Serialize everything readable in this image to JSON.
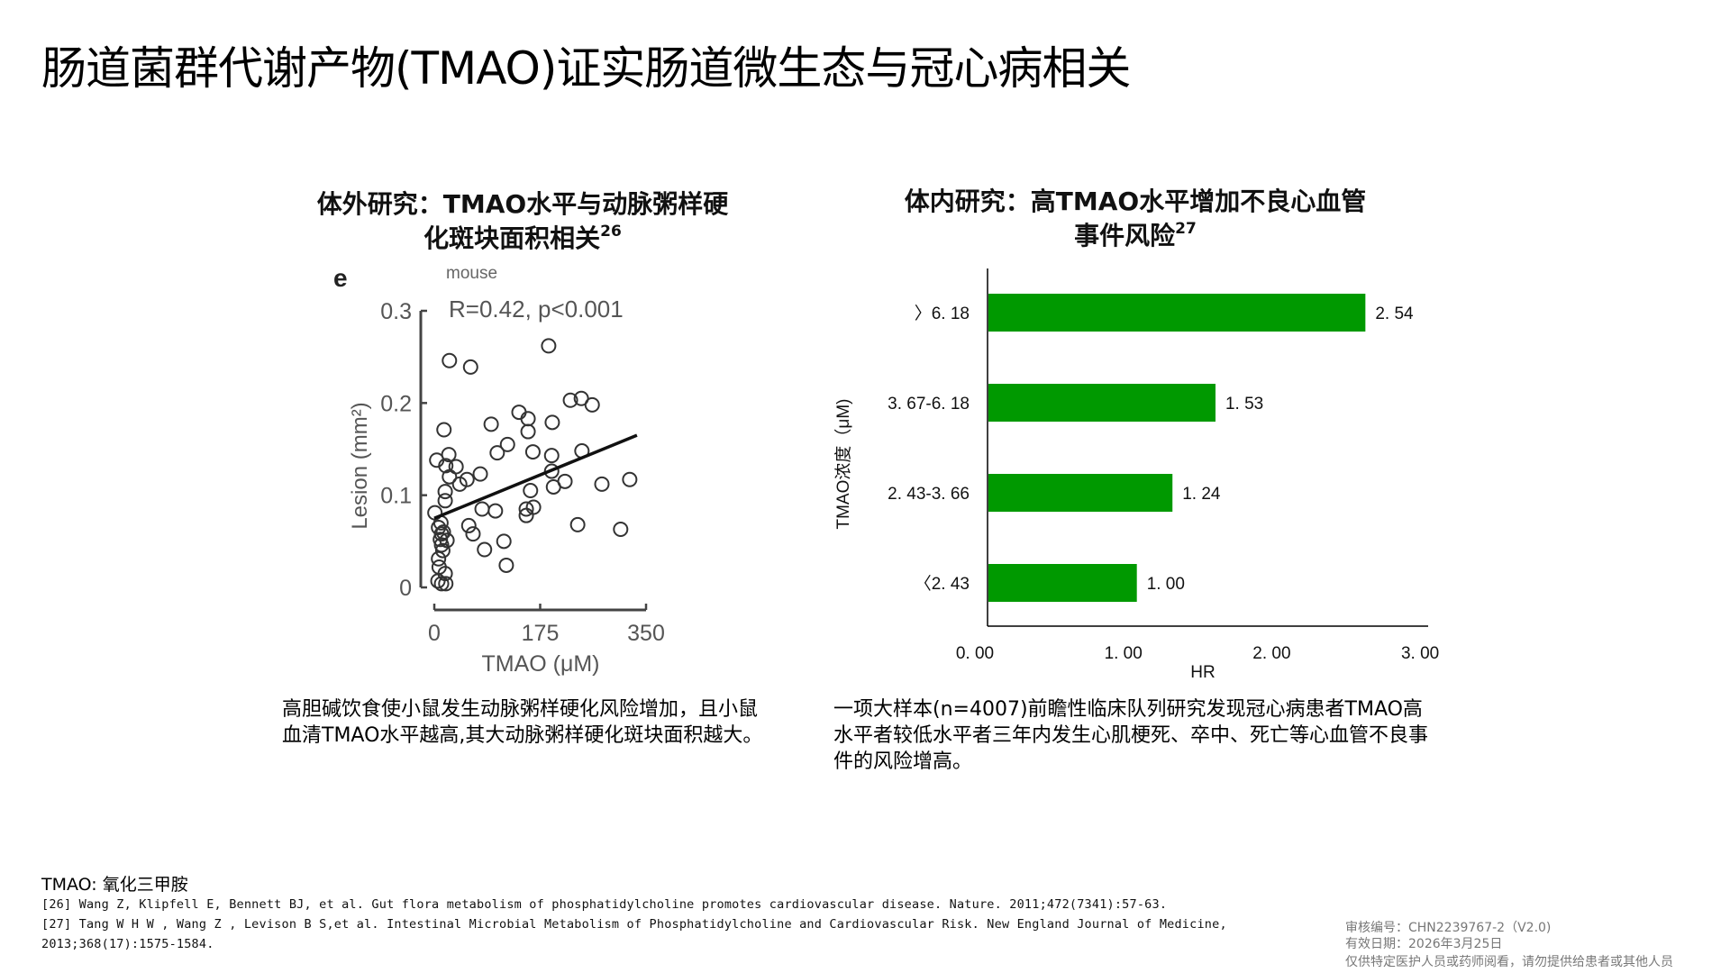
{
  "page": {
    "title": "肠道菌群代谢产物(TMAO)证实肠道微生态与冠心病相关"
  },
  "left_panel": {
    "title_line1": "体外研究：TMAO水平与动脉粥样硬",
    "title_line2": "化斑块面积相关",
    "title_ref": "26",
    "description": "高胆碱饮食使小鼠发生动脉粥样硬化风险增加，且小鼠血清TMAO水平越高,其大动脉粥样硬化斑块面积越大。"
  },
  "right_panel": {
    "title_line1": "体内研究：高TMAO水平增加不良心血管",
    "title_line2": "事件风险",
    "title_ref": "27",
    "description": "一项大样本(n=4007)前瞻性临床队列研究发现冠心病患者TMAO高水平者较低水平者三年内发生心肌梗死、卒中、死亡等心血管不良事件的风险增高。"
  },
  "chart_data": [
    {
      "type": "scatter",
      "panel_label": "e",
      "subtitle": "mouse",
      "annotation": "R=0.42, p<0.001",
      "xlabel": "TMAO (μM)",
      "ylabel": "Lesion (mm²)",
      "xlim": [
        0,
        350
      ],
      "ylim": [
        0,
        0.3
      ],
      "xticks": [
        "0",
        "175",
        "350"
      ],
      "yticks": [
        "0",
        "0.1",
        "0.2",
        "0.3"
      ],
      "grid": false,
      "regression_line": {
        "x": [
          0,
          335
        ],
        "y": [
          0.075,
          0.165
        ]
      },
      "points": [
        [
          25,
          0.246
        ],
        [
          60,
          0.239
        ],
        [
          189,
          0.262
        ],
        [
          225,
          0.203
        ],
        [
          243,
          0.205
        ],
        [
          261,
          0.198
        ],
        [
          140,
          0.19
        ],
        [
          155,
          0.183
        ],
        [
          155,
          0.169
        ],
        [
          195,
          0.179
        ],
        [
          16,
          0.171
        ],
        [
          94,
          0.177
        ],
        [
          104,
          0.146
        ],
        [
          121,
          0.155
        ],
        [
          163,
          0.147
        ],
        [
          194,
          0.143
        ],
        [
          244,
          0.148
        ],
        [
          24,
          0.144
        ],
        [
          4,
          0.138
        ],
        [
          19,
          0.132
        ],
        [
          36,
          0.131
        ],
        [
          25,
          0.12
        ],
        [
          76,
          0.123
        ],
        [
          42,
          0.112
        ],
        [
          54,
          0.117
        ],
        [
          194,
          0.126
        ],
        [
          197,
          0.109
        ],
        [
          216,
          0.115
        ],
        [
          277,
          0.112
        ],
        [
          323,
          0.117
        ],
        [
          18,
          0.104
        ],
        [
          18,
          0.094
        ],
        [
          159,
          0.105
        ],
        [
          152,
          0.085
        ],
        [
          164,
          0.087
        ],
        [
          152,
          0.078
        ],
        [
          79,
          0.085
        ],
        [
          101,
          0.083
        ],
        [
          1,
          0.081
        ],
        [
          7,
          0.065
        ],
        [
          12,
          0.058
        ],
        [
          21,
          0.051
        ],
        [
          12,
          0.046
        ],
        [
          57,
          0.067
        ],
        [
          64,
          0.058
        ],
        [
          237,
          0.068
        ],
        [
          308,
          0.063
        ],
        [
          83,
          0.041
        ],
        [
          115,
          0.05
        ],
        [
          119,
          0.024
        ],
        [
          7,
          0.031
        ],
        [
          18,
          0.015
        ],
        [
          12,
          0.004
        ],
        [
          19,
          0.004
        ],
        [
          6,
          0.007
        ],
        [
          10,
          0.052
        ],
        [
          14,
          0.04
        ],
        [
          8,
          0.022
        ],
        [
          15,
          0.06
        ],
        [
          11,
          0.07
        ]
      ]
    },
    {
      "type": "bar",
      "orientation": "horizontal",
      "categories": [
        ">6.18",
        "3.67-6.18",
        "2.43-3.66",
        "<2.43"
      ],
      "category_labels": [
        "〉6. 18",
        "3. 67-6. 18",
        "2. 43-3. 66",
        "〈2. 43"
      ],
      "values": [
        2.54,
        1.53,
        1.24,
        1.0
      ],
      "value_labels": [
        "2. 54",
        "1. 53",
        "1. 24",
        "1. 00"
      ],
      "xlabel": "HR",
      "ylabel": "TMAO浓度（μM)",
      "xlim": [
        0,
        3
      ],
      "xticks": [
        "0. 00",
        "1. 00",
        "2. 00",
        "3. 00"
      ],
      "bar_color": "#009900",
      "grid": false
    }
  ],
  "footer": {
    "abbreviation": "TMAO: 氧化三甲胺",
    "references": [
      "[26]  Wang Z, Klipfell E, Bennett BJ, et al. Gut flora metabolism of phosphatidylcholine promotes cardiovascular disease. Nature. 2011;472(7341):57-63.",
      "[27]  Tang W H W , Wang Z , Levison B S,et al. Intestinal Microbial Metabolism of Phosphatidylcholine and Cardiovascular Risk. New England Journal of Medicine,",
      "2013;368(17):1575-1584."
    ],
    "approval_code": "审核编号：CHN2239767-2（V2.0)",
    "valid_date": "有效日期：2026年3月25日",
    "disclaimer": "仅供特定医护人员或药师阅看，请勿提供给患者或其他人员"
  }
}
